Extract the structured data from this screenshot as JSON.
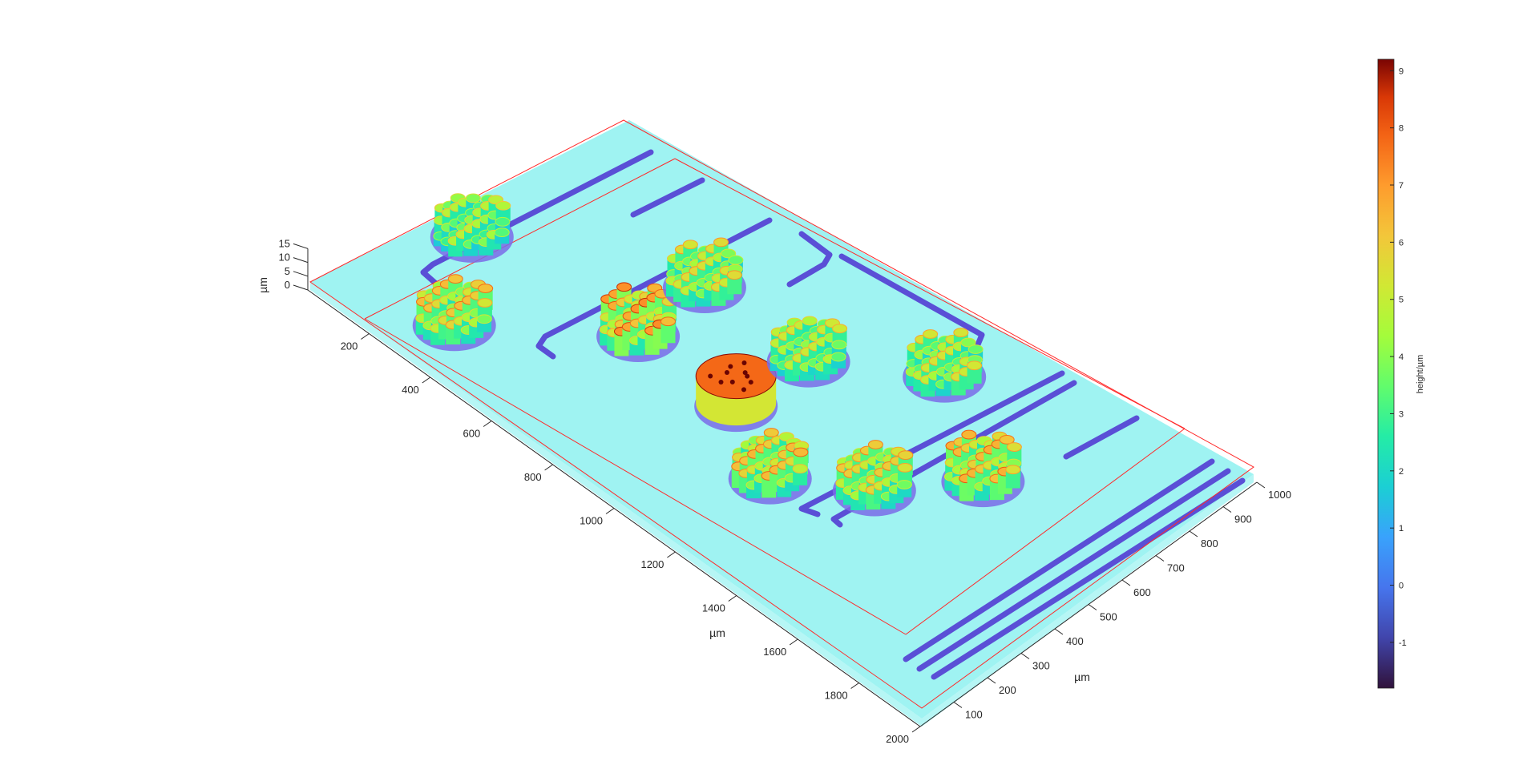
{
  "chart_data": {
    "type": "surface",
    "title": "",
    "x_axis": {
      "label": "µm",
      "ticks": [
        "200",
        "400",
        "600",
        "800",
        "1000",
        "1200",
        "1400",
        "1600",
        "1800",
        "2000"
      ],
      "range": [
        0,
        2000
      ]
    },
    "y_axis": {
      "label": "µm",
      "ticks": [
        "100",
        "200",
        "300",
        "400",
        "500",
        "600",
        "700",
        "800",
        "900",
        "1000"
      ],
      "range": [
        0,
        1000
      ]
    },
    "z_axis": {
      "label": "µm",
      "ticks": [
        "0",
        "5",
        "10",
        "15"
      ],
      "range": [
        0,
        15
      ]
    },
    "colorbar": {
      "label": "height/µm",
      "colormap": "turbo",
      "ticks": [
        "9",
        "8",
        "7",
        "6",
        "5",
        "4",
        "3",
        "2",
        "1",
        "0",
        "-1"
      ],
      "range": [
        -1.8,
        9.2
      ]
    },
    "colors": {
      "substrate": "#9ff3f2",
      "channel": "#5a4fd6",
      "box_edges": "#ff0000"
    },
    "features": [
      {
        "name": "pillar-cluster",
        "x": 330,
        "y": 870,
        "height": 6.3
      },
      {
        "name": "pillar-cluster",
        "x": 160,
        "y": 660,
        "height": 4.8
      },
      {
        "name": "pillar-cluster",
        "x": 660,
        "y": 620,
        "height": 7.2
      },
      {
        "name": "pillar-cluster",
        "x": 660,
        "y": 420,
        "height": 5.6
      },
      {
        "name": "solid-disk",
        "x": 980,
        "y": 620,
        "height": 7.8
      },
      {
        "name": "pillar-cluster",
        "x": 1200,
        "y": 720,
        "height": 6.4
      },
      {
        "name": "pillar-cluster",
        "x": 1400,
        "y": 590,
        "height": 6.0
      },
      {
        "name": "pillar-cluster",
        "x": 1000,
        "y": 420,
        "height": 5.2
      },
      {
        "name": "pillar-cluster",
        "x": 1560,
        "y": 410,
        "height": 6.6
      },
      {
        "name": "pillar-cluster",
        "x": 1260,
        "y": 250,
        "height": 5.4
      }
    ]
  }
}
